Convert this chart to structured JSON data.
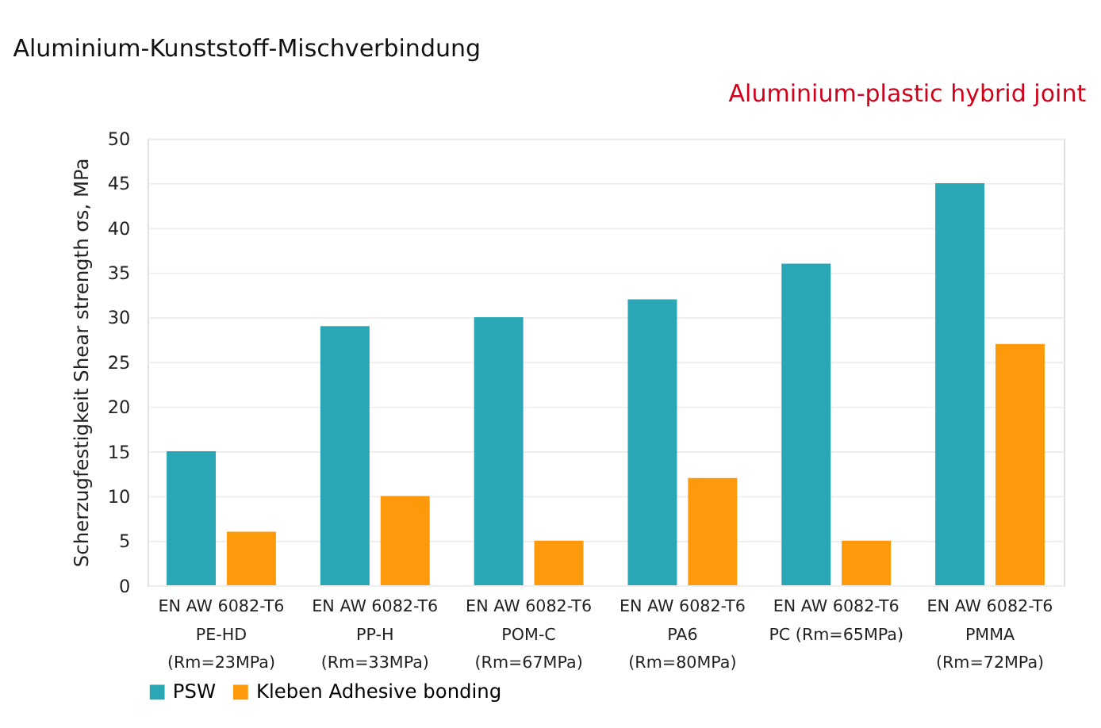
{
  "chart_data": {
    "type": "bar",
    "title": "Aluminium-Kunststoff-Mischverbindung",
    "subtitle": "Aluminium-plastic hybrid joint",
    "ylabel": "Scherzugfestigkeit Shear strength σs,  MPa",
    "categories": [
      "EN AW 6082-T6\nPE-HD\n(Rm=23MPa)",
      "EN AW 6082-T6\nPP-H\n(Rm=33MPa)",
      "EN AW 6082-T6\nPOM-C\n(Rm=67MPa)",
      "EN AW 6082-T6\nPA6\n(Rm=80MPa)",
      "EN AW 6082-T6\nPC (Rm=65MPa)",
      "EN AW 6082-T6\nPMMA\n(Rm=72MPa)"
    ],
    "series": [
      {
        "name": "PSW",
        "color": "#2ba6b5",
        "values": [
          15,
          29,
          30,
          32,
          36,
          45
        ]
      },
      {
        "name": "Kleben Adhesive bonding",
        "color": "#fd9a0b",
        "values": [
          6,
          10,
          5,
          12,
          5,
          27
        ]
      }
    ],
    "ylim": [
      0,
      50
    ],
    "yticks": [
      0,
      5,
      10,
      15,
      20,
      25,
      30,
      35,
      40,
      45,
      50
    ],
    "grid": "y",
    "legend": "bottom"
  }
}
